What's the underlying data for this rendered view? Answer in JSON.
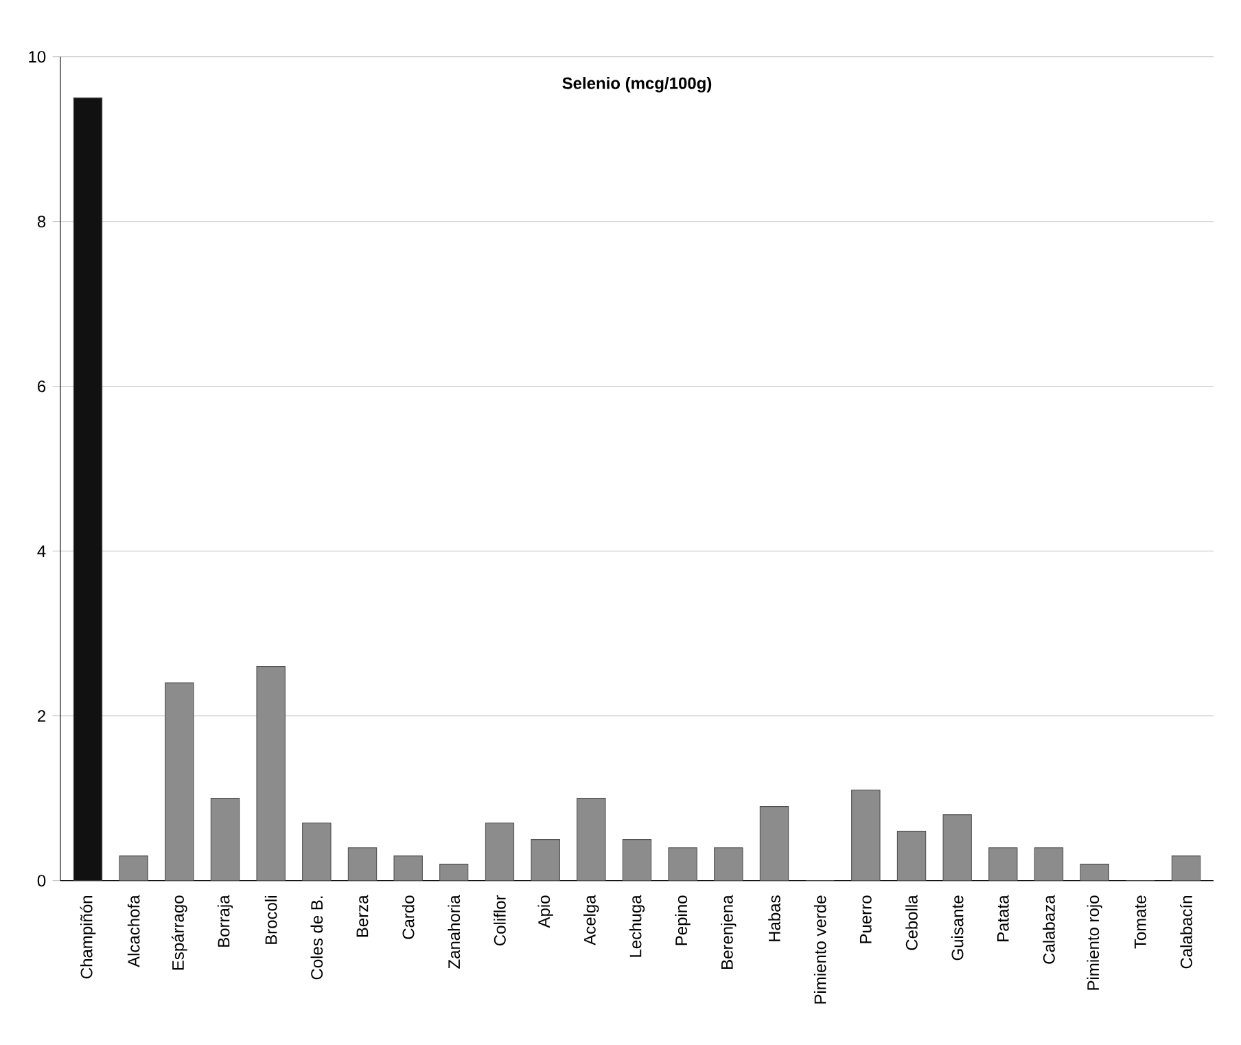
{
  "chart_data": {
    "type": "bar",
    "title": "Selenio (mcg/100g)",
    "categories": [
      "Champiñón",
      "Alcachofa",
      "Espárrago",
      "Borraja",
      "Brocoli",
      "Coles de B.",
      "Berza",
      "Cardo",
      "Zanahoria",
      "Coliflor",
      "Apio",
      "Acelga",
      "Lechuga",
      "Pepino",
      "Berenjena",
      "Habas",
      "Pimiento verde",
      "Puerro",
      "Cebolla",
      "Guisante",
      "Patata",
      "Calabaza",
      "Pimiento rojo",
      "Tomate",
      "Calabacín"
    ],
    "values": [
      9.5,
      0.3,
      2.4,
      1.0,
      2.6,
      0.7,
      0.4,
      0.3,
      0.2,
      0.7,
      0.5,
      1.0,
      0.5,
      0.4,
      0.4,
      0.9,
      0,
      1.1,
      0.6,
      0.8,
      0.4,
      0.4,
      0.2,
      0,
      0.3
    ],
    "colors": [
      "#111111",
      "#8c8c8c",
      "#8c8c8c",
      "#8c8c8c",
      "#8c8c8c",
      "#8c8c8c",
      "#8c8c8c",
      "#8c8c8c",
      "#8c8c8c",
      "#8c8c8c",
      "#8c8c8c",
      "#8c8c8c",
      "#8c8c8c",
      "#8c8c8c",
      "#8c8c8c",
      "#8c8c8c",
      "#8c8c8c",
      "#8c8c8c",
      "#8c8c8c",
      "#8c8c8c",
      "#8c8c8c",
      "#8c8c8c",
      "#8c8c8c",
      "#8c8c8c",
      "#8c8c8c"
    ],
    "ylim": [
      0,
      10
    ],
    "yticks": [
      0,
      2,
      4,
      6,
      8,
      10
    ],
    "grid": "y"
  }
}
